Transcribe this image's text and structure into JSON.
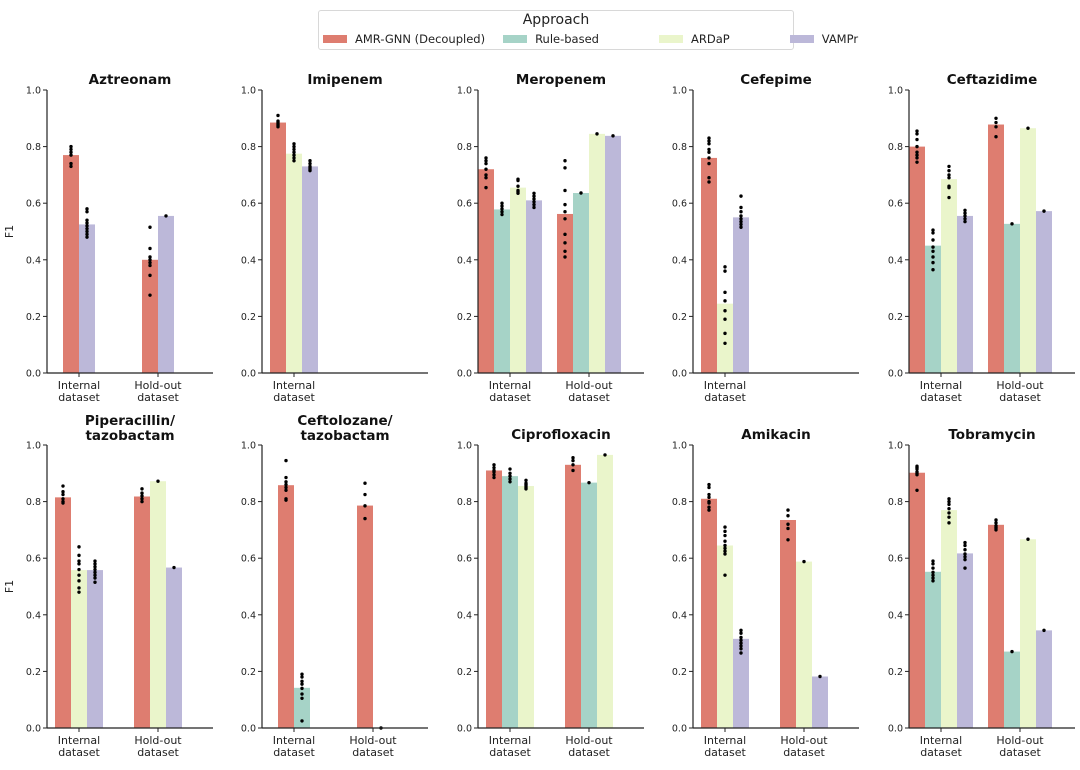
{
  "legend": {
    "title": "Approach",
    "items": [
      {
        "label": "AMR-GNN (Decoupled)",
        "color": "#DE7D70"
      },
      {
        "label": "Rule-based",
        "color": "#A6D3C7"
      },
      {
        "label": "ARDaP",
        "color": "#EAF5CB"
      },
      {
        "label": "VAMPr",
        "color": "#BCB8D9"
      }
    ]
  },
  "chart_data": {
    "type": "bar",
    "ylabel": "F1",
    "ylim": [
      0,
      1.0
    ],
    "yticks": [
      "0.0",
      "0.2",
      "0.4",
      "0.6",
      "0.8",
      "1.0"
    ],
    "legend_position": "top-center",
    "series_names": [
      "AMR-GNN (Decoupled)",
      "Rule-based",
      "ARDaP",
      "VAMPr"
    ],
    "categories": [
      [
        "Internal",
        "dataset"
      ],
      [
        "Hold-out",
        "dataset"
      ]
    ],
    "panels": [
      {
        "title": [
          "Aztreonam"
        ],
        "categories_shown": [
          0,
          1
        ],
        "bars": [
          {
            "cat": 0,
            "series": 0,
            "value": 0.77,
            "points": [
              0.8,
              0.79,
              0.78,
              0.77,
              0.74,
              0.73
            ]
          },
          {
            "cat": 0,
            "series": 3,
            "value": 0.525,
            "points": [
              0.58,
              0.57,
              0.54,
              0.53,
              0.52,
              0.51,
              0.5,
              0.49,
              0.48
            ]
          },
          {
            "cat": 1,
            "series": 0,
            "value": 0.4,
            "points": [
              0.515,
              0.44,
              0.41,
              0.4,
              0.39,
              0.38,
              0.345,
              0.275
            ]
          },
          {
            "cat": 1,
            "series": 3,
            "value": 0.555,
            "points": [
              0.555
            ]
          }
        ]
      },
      {
        "title": [
          "Imipenem"
        ],
        "categories_shown": [
          0
        ],
        "bars": [
          {
            "cat": 0,
            "series": 0,
            "value": 0.885,
            "points": [
              0.91,
              0.89,
              0.885,
              0.88,
              0.875,
              0.87
            ]
          },
          {
            "cat": 0,
            "series": 2,
            "value": 0.775,
            "points": [
              0.81,
              0.8,
              0.79,
              0.78,
              0.77,
              0.76,
              0.75
            ]
          },
          {
            "cat": 0,
            "series": 3,
            "value": 0.73,
            "points": [
              0.75,
              0.74,
              0.73,
              0.725,
              0.72,
              0.715
            ]
          }
        ]
      },
      {
        "title": [
          "Meropenem"
        ],
        "categories_shown": [
          0,
          1
        ],
        "bars": [
          {
            "cat": 0,
            "series": 0,
            "value": 0.72,
            "points": [
              0.76,
              0.75,
              0.74,
              0.72,
              0.7,
              0.69,
              0.655
            ]
          },
          {
            "cat": 0,
            "series": 1,
            "value": 0.578,
            "points": [
              0.6,
              0.59,
              0.58,
              0.57,
              0.56
            ]
          },
          {
            "cat": 0,
            "series": 2,
            "value": 0.655,
            "points": [
              0.685,
              0.68,
              0.66,
              0.645,
              0.64,
              0.635
            ]
          },
          {
            "cat": 0,
            "series": 3,
            "value": 0.61,
            "points": [
              0.635,
              0.625,
              0.615,
              0.605,
              0.595,
              0.585
            ]
          },
          {
            "cat": 1,
            "series": 0,
            "value": 0.562,
            "points": [
              0.75,
              0.725,
              0.645,
              0.595,
              0.57,
              0.545,
              0.49,
              0.46,
              0.43,
              0.41
            ]
          },
          {
            "cat": 1,
            "series": 1,
            "value": 0.636,
            "points": [
              0.636
            ]
          },
          {
            "cat": 1,
            "series": 2,
            "value": 0.845,
            "points": [
              0.845
            ]
          },
          {
            "cat": 1,
            "series": 3,
            "value": 0.838,
            "points": [
              0.838
            ]
          }
        ]
      },
      {
        "title": [
          "Cefepime"
        ],
        "categories_shown": [
          0
        ],
        "bars": [
          {
            "cat": 0,
            "series": 0,
            "value": 0.76,
            "points": [
              0.83,
              0.82,
              0.81,
              0.79,
              0.78,
              0.76,
              0.74,
              0.69,
              0.675
            ]
          },
          {
            "cat": 0,
            "series": 2,
            "value": 0.245,
            "points": [
              0.375,
              0.36,
              0.285,
              0.255,
              0.22,
              0.19,
              0.14,
              0.105
            ]
          },
          {
            "cat": 0,
            "series": 3,
            "value": 0.55,
            "points": [
              0.625,
              0.585,
              0.57,
              0.555,
              0.545,
              0.535,
              0.525,
              0.515
            ]
          }
        ]
      },
      {
        "title": [
          "Ceftazidime"
        ],
        "categories_shown": [
          0,
          1
        ],
        "bars": [
          {
            "cat": 0,
            "series": 0,
            "value": 0.8,
            "points": [
              0.855,
              0.845,
              0.825,
              0.8,
              0.78,
              0.77,
              0.76,
              0.745
            ]
          },
          {
            "cat": 0,
            "series": 1,
            "value": 0.45,
            "points": [
              0.505,
              0.495,
              0.47,
              0.445,
              0.43,
              0.41,
              0.39,
              0.365
            ]
          },
          {
            "cat": 0,
            "series": 2,
            "value": 0.685,
            "points": [
              0.73,
              0.715,
              0.7,
              0.69,
              0.66,
              0.655,
              0.62
            ]
          },
          {
            "cat": 0,
            "series": 3,
            "value": 0.555,
            "points": [
              0.575,
              0.565,
              0.555,
              0.545,
              0.535
            ]
          },
          {
            "cat": 1,
            "series": 0,
            "value": 0.878,
            "points": [
              0.9,
              0.885,
              0.87,
              0.835
            ]
          },
          {
            "cat": 1,
            "series": 1,
            "value": 0.527,
            "points": [
              0.527
            ]
          },
          {
            "cat": 1,
            "series": 2,
            "value": 0.865,
            "points": [
              0.865
            ]
          },
          {
            "cat": 1,
            "series": 3,
            "value": 0.572,
            "points": [
              0.572
            ]
          }
        ]
      },
      {
        "title": [
          "Piperacillin/",
          "tazobactam"
        ],
        "categories_shown": [
          0,
          1
        ],
        "bars": [
          {
            "cat": 0,
            "series": 0,
            "value": 0.815,
            "points": [
              0.855,
              0.835,
              0.825,
              0.81,
              0.8,
              0.795
            ]
          },
          {
            "cat": 0,
            "series": 2,
            "value": 0.558,
            "points": [
              0.64,
              0.61,
              0.59,
              0.58,
              0.56,
              0.54,
              0.52,
              0.495,
              0.48
            ]
          },
          {
            "cat": 0,
            "series": 3,
            "value": 0.558,
            "points": [
              0.59,
              0.58,
              0.57,
              0.56,
              0.55,
              0.54,
              0.53,
              0.515
            ]
          },
          {
            "cat": 1,
            "series": 0,
            "value": 0.818,
            "points": [
              0.845,
              0.83,
              0.82,
              0.81,
              0.8
            ]
          },
          {
            "cat": 1,
            "series": 2,
            "value": 0.872,
            "points": [
              0.872
            ]
          },
          {
            "cat": 1,
            "series": 3,
            "value": 0.567,
            "points": [
              0.567
            ]
          }
        ]
      },
      {
        "title": [
          "Ceftolozane/",
          "tazobactam"
        ],
        "categories_shown": [
          0,
          1
        ],
        "bars": [
          {
            "cat": 0,
            "series": 0,
            "value": 0.858,
            "points": [
              0.945,
              0.885,
              0.87,
              0.86,
              0.85,
              0.84,
              0.81,
              0.805
            ]
          },
          {
            "cat": 0,
            "series": 1,
            "value": 0.142,
            "points": [
              0.19,
              0.18,
              0.165,
              0.155,
              0.14,
              0.12,
              0.105,
              0.025
            ]
          },
          {
            "cat": 1,
            "series": 0,
            "value": 0.786,
            "points": [
              0.865,
              0.825,
              0.785,
              0.74
            ]
          },
          {
            "cat": 1,
            "series": 1,
            "value": 0.0,
            "points": [
              0.0
            ]
          }
        ]
      },
      {
        "title": [
          "Ciprofloxacin"
        ],
        "categories_shown": [
          0,
          1
        ],
        "bars": [
          {
            "cat": 0,
            "series": 0,
            "value": 0.91,
            "points": [
              0.93,
              0.92,
              0.91,
              0.905,
              0.895,
              0.885
            ]
          },
          {
            "cat": 0,
            "series": 1,
            "value": 0.89,
            "points": [
              0.915,
              0.9,
              0.89,
              0.88,
              0.87
            ]
          },
          {
            "cat": 0,
            "series": 2,
            "value": 0.855,
            "points": [
              0.875,
              0.865,
              0.86,
              0.855,
              0.85,
              0.845
            ]
          },
          {
            "cat": 1,
            "series": 0,
            "value": 0.93,
            "points": [
              0.955,
              0.945,
              0.93,
              0.91
            ]
          },
          {
            "cat": 1,
            "series": 1,
            "value": 0.867,
            "points": [
              0.867
            ]
          },
          {
            "cat": 1,
            "series": 2,
            "value": 0.965,
            "points": [
              0.965
            ]
          }
        ]
      },
      {
        "title": [
          "Amikacin"
        ],
        "categories_shown": [
          0,
          1
        ],
        "bars": [
          {
            "cat": 0,
            "series": 0,
            "value": 0.81,
            "points": [
              0.86,
              0.85,
              0.825,
              0.815,
              0.8,
              0.795,
              0.78,
              0.77
            ]
          },
          {
            "cat": 0,
            "series": 2,
            "value": 0.645,
            "points": [
              0.71,
              0.695,
              0.68,
              0.66,
              0.645,
              0.635,
              0.625,
              0.615,
              0.54
            ]
          },
          {
            "cat": 0,
            "series": 3,
            "value": 0.315,
            "points": [
              0.345,
              0.335,
              0.32,
              0.31,
              0.3,
              0.29,
              0.28,
              0.265
            ]
          },
          {
            "cat": 1,
            "series": 0,
            "value": 0.735,
            "points": [
              0.77,
              0.75,
              0.72,
              0.705,
              0.665
            ]
          },
          {
            "cat": 1,
            "series": 2,
            "value": 0.588,
            "points": [
              0.588
            ]
          },
          {
            "cat": 1,
            "series": 3,
            "value": 0.182,
            "points": [
              0.182
            ]
          }
        ]
      },
      {
        "title": [
          "Tobramycin"
        ],
        "categories_shown": [
          0,
          1
        ],
        "bars": [
          {
            "cat": 0,
            "series": 0,
            "value": 0.902,
            "points": [
              0.925,
              0.92,
              0.915,
              0.905,
              0.9,
              0.895,
              0.84
            ]
          },
          {
            "cat": 0,
            "series": 1,
            "value": 0.552,
            "points": [
              0.59,
              0.58,
              0.565,
              0.55,
              0.54,
              0.53,
              0.52
            ]
          },
          {
            "cat": 0,
            "series": 2,
            "value": 0.77,
            "points": [
              0.81,
              0.8,
              0.79,
              0.775,
              0.76,
              0.745,
              0.725
            ]
          },
          {
            "cat": 0,
            "series": 3,
            "value": 0.617,
            "points": [
              0.655,
              0.645,
              0.63,
              0.615,
              0.605,
              0.595,
              0.565
            ]
          },
          {
            "cat": 1,
            "series": 0,
            "value": 0.718,
            "points": [
              0.735,
              0.725,
              0.715,
              0.71,
              0.705,
              0.7
            ]
          },
          {
            "cat": 1,
            "series": 1,
            "value": 0.27,
            "points": [
              0.27
            ]
          },
          {
            "cat": 1,
            "series": 2,
            "value": 0.667,
            "points": [
              0.667
            ]
          },
          {
            "cat": 1,
            "series": 3,
            "value": 0.345,
            "points": [
              0.345
            ]
          }
        ]
      }
    ]
  }
}
